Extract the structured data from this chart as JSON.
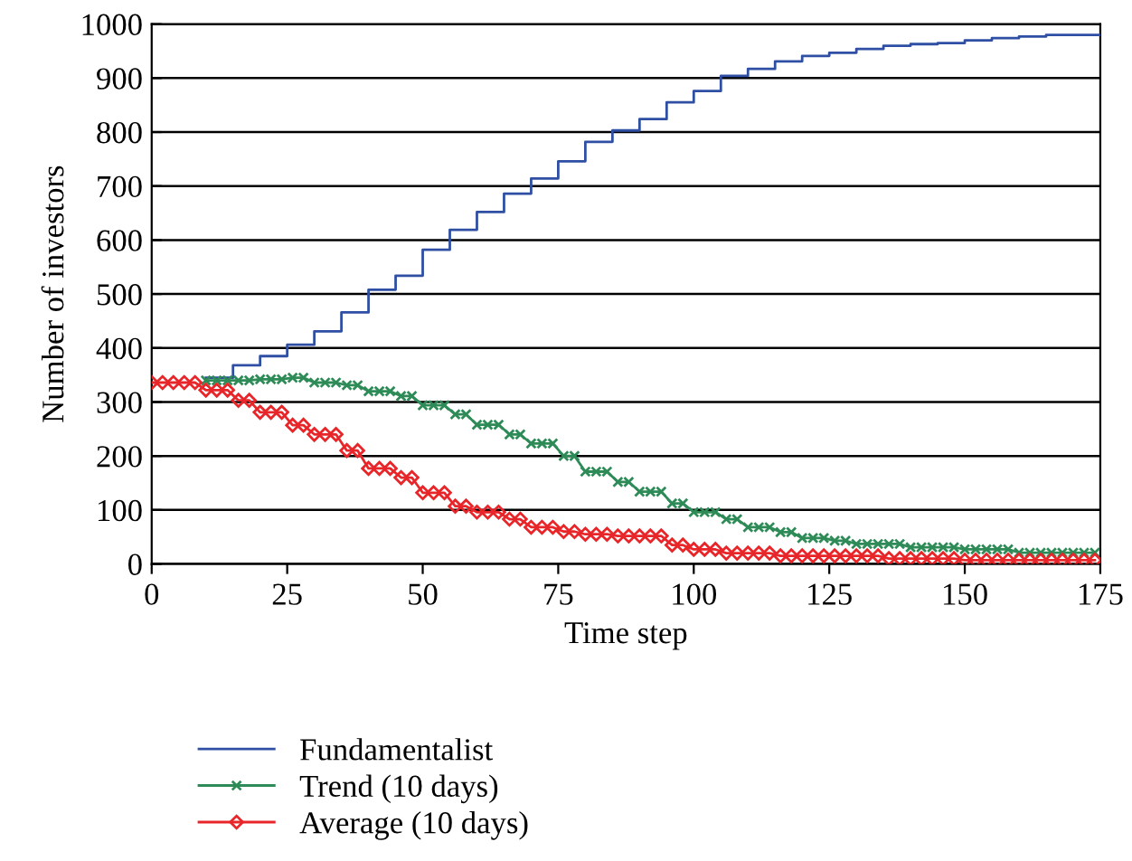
{
  "chart_data": {
    "type": "line",
    "xlabel": "Time step",
    "ylabel": "Number of investors",
    "xlim": [
      0,
      175
    ],
    "xticks": [
      0,
      25,
      50,
      75,
      100,
      125,
      150,
      175
    ],
    "ylim": [
      0,
      1000
    ],
    "yticks": [
      0,
      100,
      200,
      300,
      400,
      500,
      600,
      700,
      800,
      900,
      1000
    ],
    "grid": "y",
    "legend": "bottom",
    "series": [
      {
        "name": "Fundamentalist",
        "type": "step",
        "color": "#2e4fa3",
        "marker": "none",
        "x": [
          10,
          15,
          20,
          25,
          30,
          35,
          40,
          45,
          50,
          55,
          60,
          65,
          70,
          75,
          80,
          85,
          90,
          95,
          100,
          105,
          110,
          115,
          120,
          125,
          130,
          135,
          140,
          145,
          150,
          155,
          160,
          165,
          175
        ],
        "values": [
          345,
          368,
          385,
          406,
          431,
          466,
          508,
          534,
          582,
          619,
          652,
          686,
          714,
          746,
          782,
          803,
          824,
          855,
          876,
          904,
          917,
          931,
          941,
          947,
          954,
          960,
          963,
          965,
          970,
          974,
          977,
          980,
          980
        ]
      },
      {
        "name": "Trend (10 days)",
        "color": "#2e8b57",
        "marker": "cross",
        "x": [
          10,
          12,
          14,
          16,
          18,
          20,
          22,
          24,
          26,
          28,
          30,
          32,
          34,
          36,
          38,
          40,
          42,
          44,
          46,
          48,
          50,
          52,
          54,
          56,
          58,
          60,
          62,
          64,
          66,
          68,
          70,
          72,
          74,
          76,
          78,
          80,
          82,
          84,
          86,
          88,
          90,
          92,
          94,
          96,
          98,
          100,
          102,
          104,
          106,
          108,
          110,
          112,
          114,
          116,
          118,
          120,
          122,
          124,
          126,
          128,
          130,
          132,
          134,
          136,
          138,
          140,
          142,
          144,
          146,
          148,
          150,
          152,
          154,
          156,
          158,
          160,
          162,
          164,
          166,
          168,
          170,
          172,
          174
        ],
        "values": [
          340,
          340,
          340,
          340,
          340,
          342,
          342,
          342,
          345,
          345,
          336,
          336,
          336,
          331,
          331,
          320,
          320,
          320,
          311,
          311,
          294,
          294,
          294,
          277,
          277,
          258,
          258,
          258,
          240,
          240,
          223,
          223,
          223,
          200,
          200,
          171,
          171,
          171,
          152,
          152,
          134,
          134,
          134,
          112,
          112,
          96,
          96,
          96,
          83,
          83,
          68,
          68,
          68,
          59,
          59,
          48,
          48,
          48,
          43,
          43,
          37,
          37,
          37,
          37,
          37,
          31,
          31,
          31,
          31,
          31,
          27,
          27,
          27,
          27,
          27,
          21,
          21,
          21,
          21,
          21,
          21,
          21,
          21
        ]
      },
      {
        "name": "Average (10 days)",
        "color": "#e8262a",
        "marker": "diamond",
        "x": [
          0,
          2,
          4,
          6,
          8,
          10,
          12,
          14,
          16,
          18,
          20,
          22,
          24,
          26,
          28,
          30,
          32,
          34,
          36,
          38,
          40,
          42,
          44,
          46,
          48,
          50,
          52,
          54,
          56,
          58,
          60,
          62,
          64,
          66,
          68,
          70,
          72,
          74,
          76,
          78,
          80,
          82,
          84,
          86,
          88,
          90,
          92,
          94,
          96,
          98,
          100,
          102,
          104,
          106,
          108,
          110,
          112,
          114,
          116,
          118,
          120,
          122,
          124,
          126,
          128,
          130,
          132,
          134,
          136,
          138,
          140,
          142,
          144,
          146,
          148,
          150,
          152,
          154,
          156,
          158,
          160,
          162,
          164,
          166,
          168,
          170,
          172,
          174
        ],
        "values": [
          336,
          336,
          336,
          336,
          336,
          322,
          322,
          322,
          303,
          303,
          281,
          281,
          281,
          257,
          257,
          240,
          240,
          240,
          210,
          210,
          177,
          177,
          177,
          160,
          160,
          132,
          132,
          132,
          107,
          107,
          96,
          96,
          96,
          83,
          83,
          68,
          68,
          68,
          60,
          60,
          55,
          55,
          55,
          52,
          52,
          52,
          52,
          52,
          35,
          35,
          27,
          27,
          27,
          20,
          20,
          20,
          20,
          20,
          15,
          15,
          15,
          15,
          15,
          15,
          15,
          15,
          15,
          15,
          10,
          10,
          10,
          10,
          10,
          10,
          10,
          7,
          7,
          7,
          7,
          7,
          7,
          7,
          7,
          7,
          7,
          7,
          7,
          7
        ]
      }
    ]
  }
}
